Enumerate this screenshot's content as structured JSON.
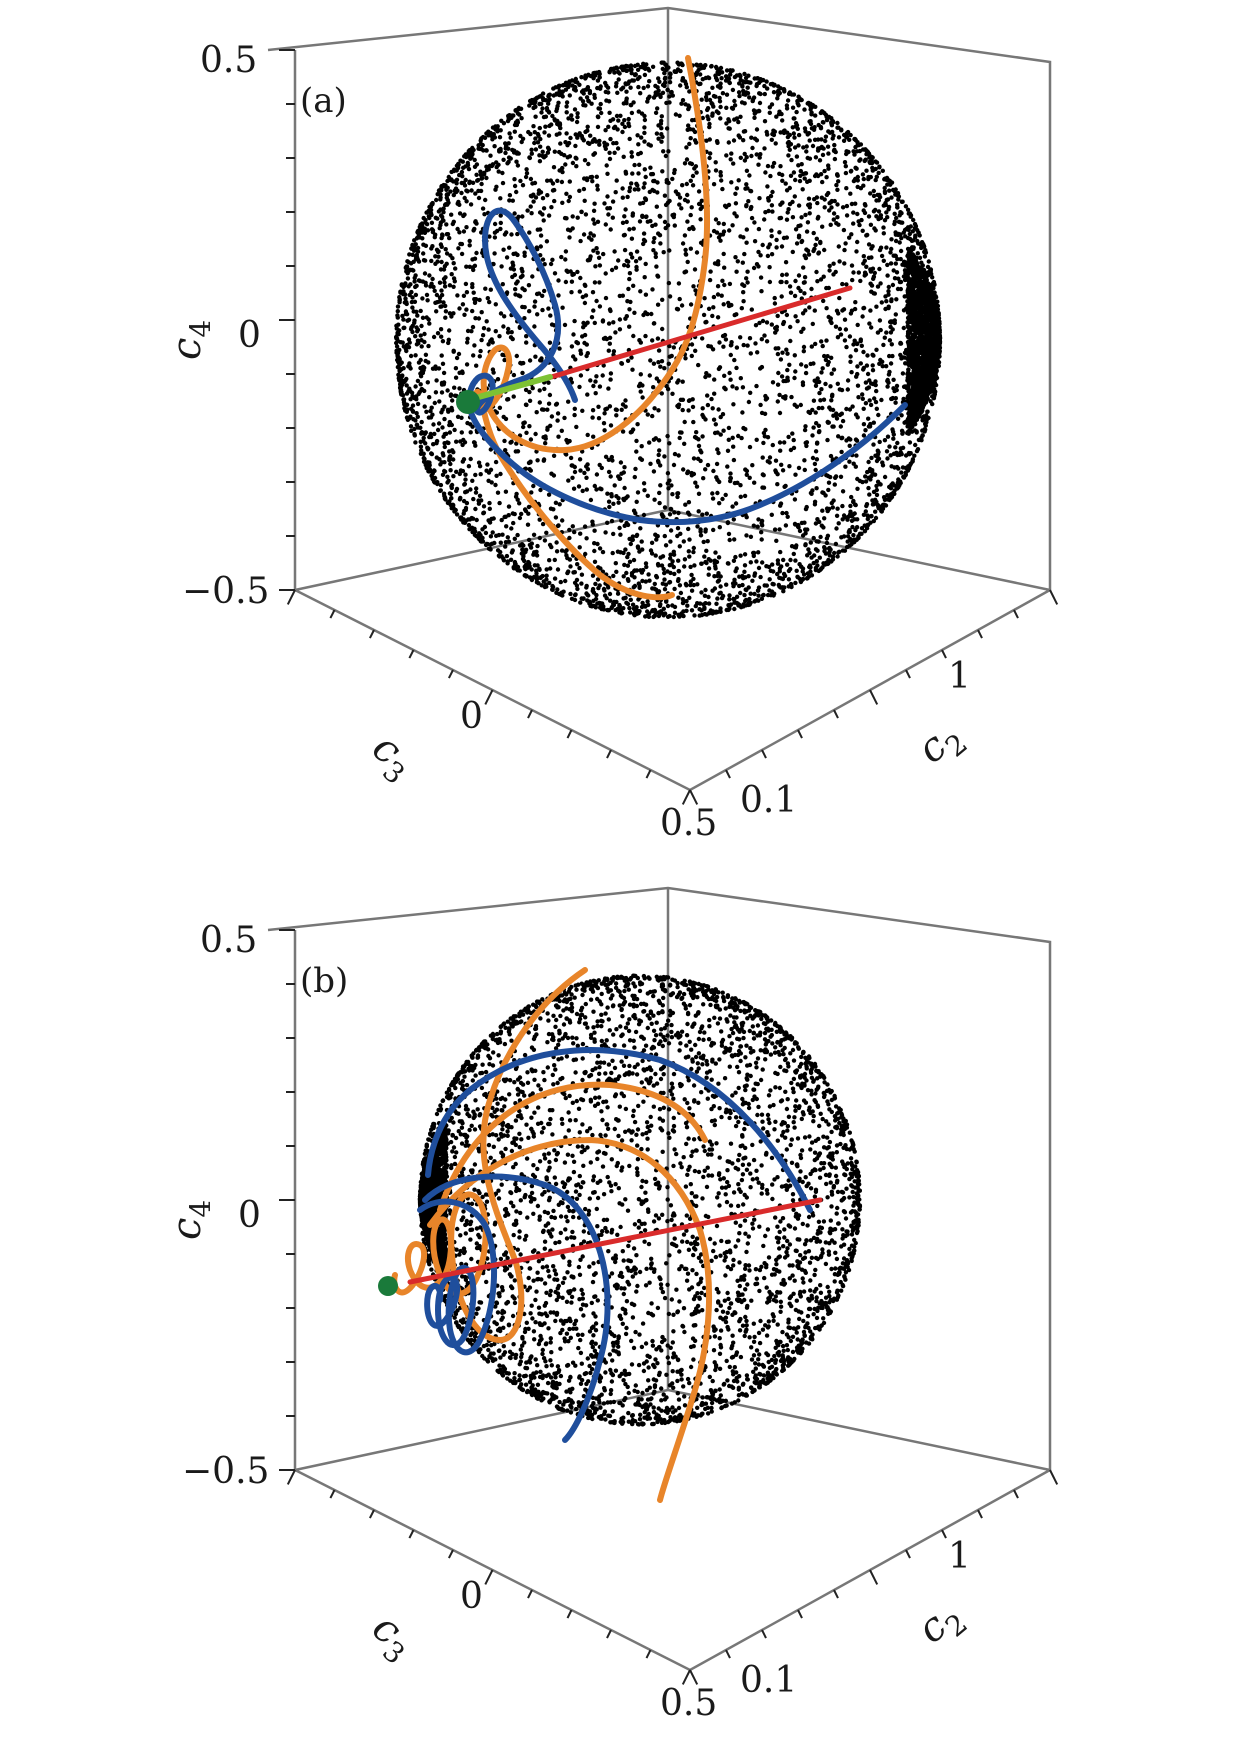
{
  "chart_data": [
    {
      "type": "scatter",
      "panel_label": "(a)",
      "axes": {
        "z": {
          "label": "c4",
          "ticks": [
            "0.5",
            "0",
            "−0.5"
          ]
        },
        "x": {
          "label": "c3",
          "ticks": [
            "0",
            "0.5"
          ]
        },
        "y": {
          "label": "c2",
          "ticks": [
            "1",
            "0.1"
          ]
        }
      },
      "point_cloud": {
        "shape": "sphere",
        "color": "#000000"
      },
      "series": [
        {
          "color": "#e8852a"
        },
        {
          "color": "#1f4e9c"
        },
        {
          "color": "#d92b2b"
        },
        {
          "color": "#7ec234"
        }
      ],
      "marker_color": "#1a7a3a"
    },
    {
      "type": "scatter",
      "panel_label": "(b)",
      "axes": {
        "z": {
          "label": "c4",
          "ticks": [
            "0.5",
            "0",
            "−0.5"
          ]
        },
        "x": {
          "label": "c3",
          "ticks": [
            "0",
            "0.5"
          ]
        },
        "y": {
          "label": "c2",
          "ticks": [
            "1",
            "0.1"
          ]
        }
      },
      "point_cloud": {
        "shape": "sphere",
        "color": "#000000"
      },
      "series": [
        {
          "color": "#e8852a"
        },
        {
          "color": "#1f4e9c"
        },
        {
          "color": "#d92b2b"
        }
      ],
      "marker_color": "#1a7a3a"
    }
  ]
}
